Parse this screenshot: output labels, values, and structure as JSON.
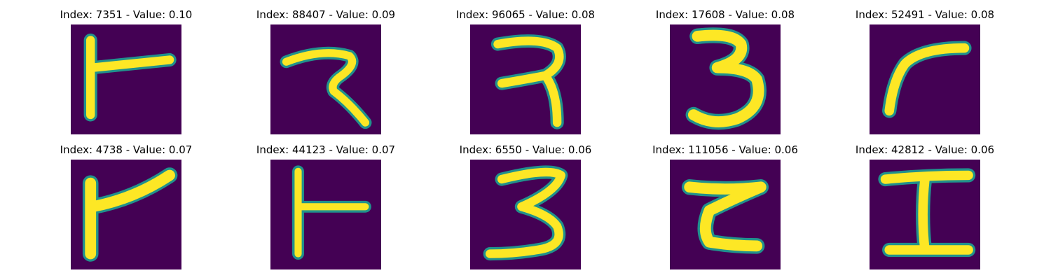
{
  "colors": {
    "background": "#440154",
    "stroke_core": "#fde725",
    "stroke_edge": "#21918c"
  },
  "panels": [
    {
      "title": "Index: 7351 - Value: 0.10",
      "glyph": "glyph-1-bar-with-stem"
    },
    {
      "title": "Index: 88407 - Value: 0.09",
      "glyph": "glyph-zigzag"
    },
    {
      "title": "Index: 96065 - Value: 0.08",
      "glyph": "glyph-reversed-s"
    },
    {
      "title": "Index: 17608 - Value: 0.08",
      "glyph": "glyph-3"
    },
    {
      "title": "Index: 52491 - Value: 0.08",
      "glyph": "glyph-7-like"
    },
    {
      "title": "Index: 4738 - Value: 0.07",
      "glyph": "glyph-1-bar-with-stem"
    },
    {
      "title": "Index: 44123 - Value: 0.07",
      "glyph": "glyph-t-left"
    },
    {
      "title": "Index: 6550 - Value: 0.06",
      "glyph": "glyph-3"
    },
    {
      "title": "Index: 111056 - Value: 0.06",
      "glyph": "glyph-z-like"
    },
    {
      "title": "Index: 42812 - Value: 0.06",
      "glyph": "glyph-i-beam"
    }
  ]
}
